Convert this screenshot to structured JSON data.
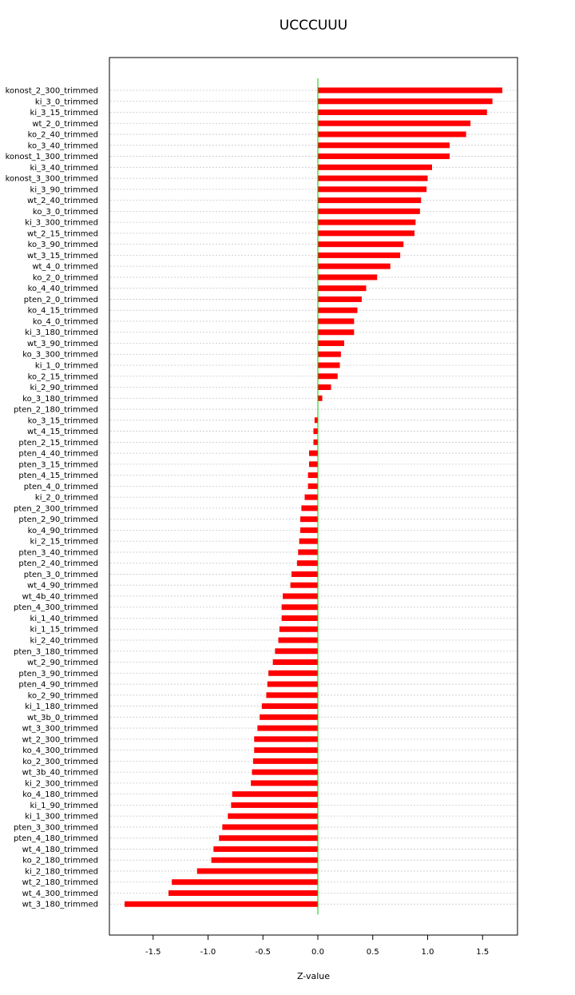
{
  "chart_data": {
    "type": "bar",
    "orientation": "horizontal",
    "title": "UCCCUUU",
    "xlabel": "Z-value",
    "ylabel": "",
    "xlim": [
      -1.9,
      1.83
    ],
    "xticks": [
      -1.5,
      -1.0,
      -0.5,
      0.0,
      0.5,
      1.0,
      1.5
    ],
    "xtick_labels": [
      "-1.5",
      "-1.0",
      "-0.5",
      "0.0",
      "0.5",
      "1.0",
      "1.5"
    ],
    "bar_color": "#ff0000",
    "zero_line_color": "#00cc00",
    "grid": "horizontal dotted",
    "categories": [
      "konost_2_300_trimmed",
      "ki_3_0_trimmed",
      "ki_3_15_trimmed",
      "wt_2_0_trimmed",
      "ko_2_40_trimmed",
      "ko_3_40_trimmed",
      "konost_1_300_trimmed",
      "ki_3_40_trimmed",
      "konost_3_300_trimmed",
      "ki_3_90_trimmed",
      "wt_2_40_trimmed",
      "ko_3_0_trimmed",
      "ki_3_300_trimmed",
      "wt_2_15_trimmed",
      "ko_3_90_trimmed",
      "wt_3_15_trimmed",
      "wt_4_0_trimmed",
      "ko_2_0_trimmed",
      "ko_4_40_trimmed",
      "pten_2_0_trimmed",
      "ko_4_15_trimmed",
      "ko_4_0_trimmed",
      "ki_3_180_trimmed",
      "wt_3_90_trimmed",
      "ko_3_300_trimmed",
      "ki_1_0_trimmed",
      "ko_2_15_trimmed",
      "ki_2_90_trimmed",
      "ko_3_180_trimmed",
      "pten_2_180_trimmed",
      "ko_3_15_trimmed",
      "wt_4_15_trimmed",
      "pten_2_15_trimmed",
      "pten_4_40_trimmed",
      "pten_3_15_trimmed",
      "pten_4_15_trimmed",
      "pten_4_0_trimmed",
      "ki_2_0_trimmed",
      "pten_2_300_trimmed",
      "pten_2_90_trimmed",
      "ko_4_90_trimmed",
      "ki_2_15_trimmed",
      "pten_3_40_trimmed",
      "pten_2_40_trimmed",
      "pten_3_0_trimmed",
      "wt_4_90_trimmed",
      "wt_4b_40_trimmed",
      "pten_4_300_trimmed",
      "ki_1_40_trimmed",
      "ki_1_15_trimmed",
      "ki_2_40_trimmed",
      "pten_3_180_trimmed",
      "wt_2_90_trimmed",
      "pten_3_90_trimmed",
      "pten_4_90_trimmed",
      "ko_2_90_trimmed",
      "ki_1_180_trimmed",
      "wt_3b_0_trimmed",
      "wt_3_300_trimmed",
      "wt_2_300_trimmed",
      "ko_4_300_trimmed",
      "ko_2_300_trimmed",
      "wt_3b_40_trimmed",
      "ki_2_300_trimmed",
      "ko_4_180_trimmed",
      "ki_1_90_trimmed",
      "ki_1_300_trimmed",
      "pten_3_300_trimmed",
      "pten_4_180_trimmed",
      "wt_4_180_trimmed",
      "ko_2_180_trimmed",
      "ki_2_180_trimmed",
      "wt_2_180_trimmed",
      "wt_4_300_trimmed",
      "wt_3_180_trimmed"
    ],
    "values": [
      1.68,
      1.59,
      1.54,
      1.39,
      1.35,
      1.2,
      1.2,
      1.04,
      1.0,
      0.99,
      0.94,
      0.93,
      0.89,
      0.88,
      0.78,
      0.75,
      0.66,
      0.54,
      0.44,
      0.4,
      0.36,
      0.33,
      0.33,
      0.24,
      0.21,
      0.2,
      0.18,
      0.12,
      0.04,
      0.0,
      -0.03,
      -0.04,
      -0.04,
      -0.08,
      -0.08,
      -0.09,
      -0.09,
      -0.12,
      -0.15,
      -0.16,
      -0.16,
      -0.17,
      -0.18,
      -0.19,
      -0.24,
      -0.25,
      -0.32,
      -0.33,
      -0.33,
      -0.35,
      -0.36,
      -0.39,
      -0.41,
      -0.45,
      -0.46,
      -0.47,
      -0.51,
      -0.53,
      -0.55,
      -0.58,
      -0.58,
      -0.59,
      -0.6,
      -0.61,
      -0.78,
      -0.79,
      -0.82,
      -0.87,
      -0.9,
      -0.95,
      -0.97,
      -1.1,
      -1.33,
      -1.36,
      -1.76
    ]
  }
}
